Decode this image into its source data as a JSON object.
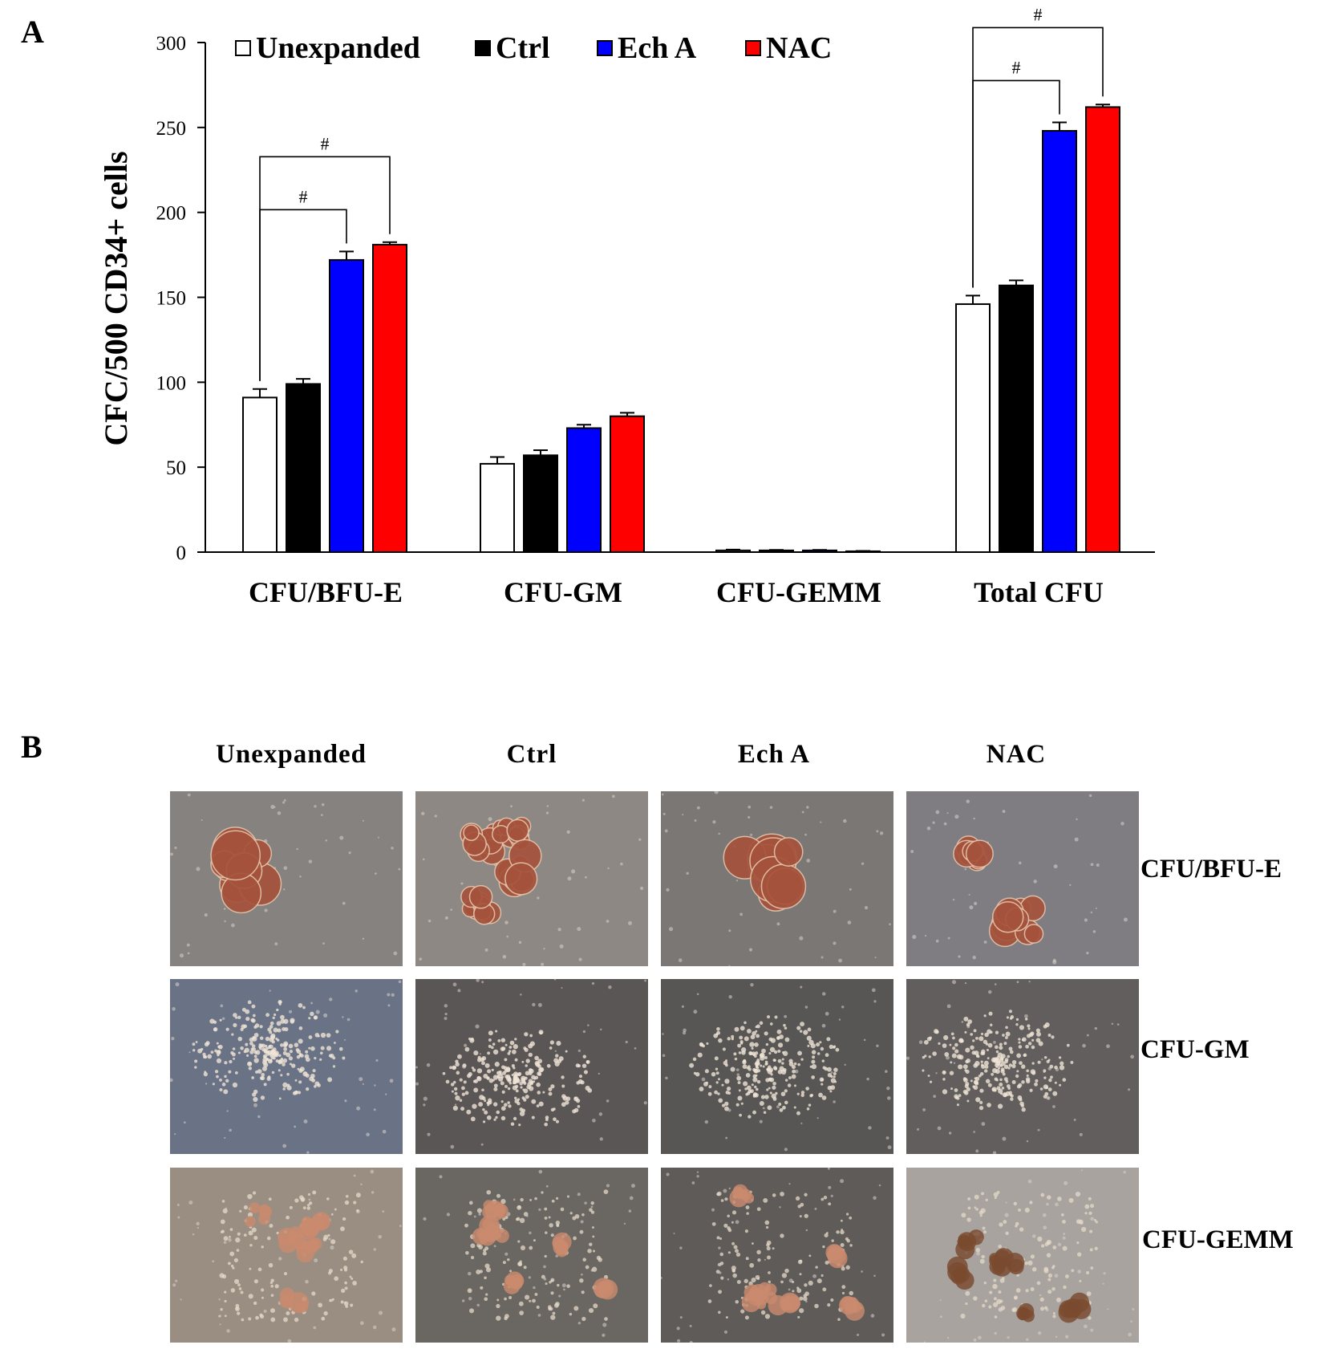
{
  "panel_a": {
    "letter": "A"
  },
  "panel_b": {
    "letter": "B",
    "columns": [
      "Unexpanded",
      "Ctrl",
      "Ech A",
      "NAC"
    ],
    "rows": [
      "CFU/BFU-E",
      "CFU-GM",
      "CFU-GEMM"
    ]
  },
  "colors": {
    "Unexpanded": "#ffffff",
    "Ctrl": "#000000",
    "Ech A": "#0000ff",
    "NAC": "#ff0000"
  },
  "chart_data": {
    "type": "bar",
    "title": "",
    "xlabel": "",
    "ylabel": "CFC/500 CD34+ cells",
    "ylim": [
      0,
      300
    ],
    "yticks": [
      "0",
      "50",
      "100",
      "150",
      "200",
      "250",
      "300"
    ],
    "categories": [
      "CFU/BFU-E",
      "CFU-GM",
      "CFU-GEMM",
      "Total CFU"
    ],
    "series": [
      {
        "name": "Unexpanded",
        "values": [
          91,
          52,
          1,
          146
        ],
        "errors": [
          5,
          4,
          0.5,
          5
        ]
      },
      {
        "name": "Ctrl",
        "values": [
          99,
          57,
          1,
          157
        ],
        "errors": [
          3,
          3,
          0.3,
          3
        ]
      },
      {
        "name": "Ech A",
        "values": [
          172,
          73,
          1,
          248
        ],
        "errors": [
          5,
          2,
          0.3,
          5
        ]
      },
      {
        "name": "NAC",
        "values": [
          181,
          80,
          0.5,
          262
        ],
        "errors": [
          1.5,
          2,
          0.2,
          1.5
        ]
      }
    ],
    "legend_position": "top",
    "grid": false,
    "significance": [
      {
        "category": "CFU/BFU-E",
        "from": "Unexpanded",
        "to": "Ech A",
        "label": "#"
      },
      {
        "category": "CFU/BFU-E",
        "from": "Unexpanded",
        "to": "NAC",
        "label": "#"
      },
      {
        "category": "Total CFU",
        "from": "Unexpanded",
        "to": "Ech A",
        "label": "#"
      },
      {
        "category": "Total CFU",
        "from": "Unexpanded",
        "to": "NAC",
        "label": "#"
      }
    ]
  }
}
